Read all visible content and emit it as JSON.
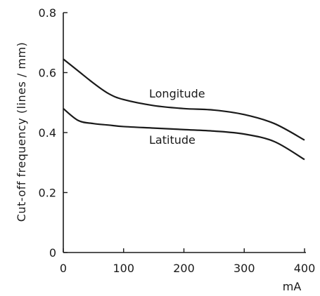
{
  "chart_data": {
    "type": "line",
    "title": "",
    "xlabel": "mA",
    "ylabel": "Cut-off frequency   (lines / mm)",
    "xlim": [
      0,
      400
    ],
    "ylim": [
      0,
      0.8
    ],
    "x_ticks": [
      "0",
      "100",
      "200",
      "300",
      "400"
    ],
    "y_ticks": [
      "0",
      "0.2",
      "0.4",
      "0.6",
      "0.8"
    ],
    "grid": false,
    "legend": "none",
    "series": [
      {
        "name": "Longitude",
        "x": [
          0,
          25,
          50,
          75,
          100,
          150,
          200,
          250,
          300,
          350,
          400
        ],
        "y": [
          0.645,
          0.605,
          0.565,
          0.53,
          0.51,
          0.49,
          0.48,
          0.475,
          0.46,
          0.43,
          0.375
        ]
      },
      {
        "name": "Latitude",
        "x": [
          0,
          25,
          50,
          75,
          100,
          150,
          200,
          250,
          300,
          350,
          400
        ],
        "y": [
          0.48,
          0.44,
          0.43,
          0.425,
          0.42,
          0.415,
          0.41,
          0.405,
          0.395,
          0.37,
          0.31
        ]
      }
    ]
  }
}
